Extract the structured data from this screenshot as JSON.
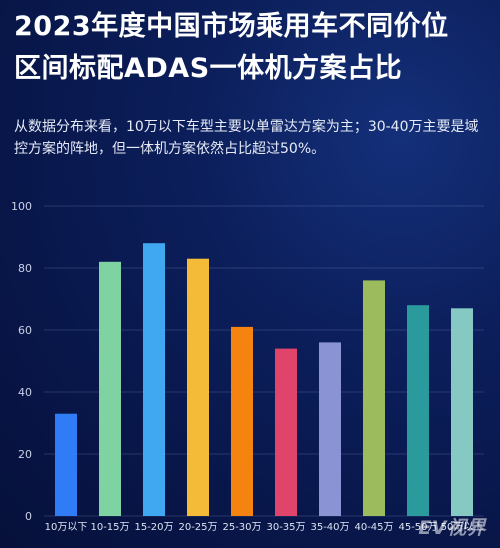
{
  "header": {
    "title_line1": "2023年度中国市场乘用车不同价位",
    "title_line2": "区间标配ADAS一体机方案占比",
    "subtitle": "从数据分布来看，10万以下车型主要以单雷达方案为主；30-40万主要是域控方案的阵地，但一体机方案依然占比超过50%。"
  },
  "watermark": "EV视界",
  "chart_data": {
    "type": "bar",
    "categories": [
      "10万以下",
      "10-15万",
      "15-20万",
      "20-25万",
      "25-30万",
      "30-35万",
      "35-40万",
      "40-45万",
      "45-50万",
      "50万以上"
    ],
    "values": [
      33,
      82,
      88,
      83,
      61,
      54,
      56,
      76,
      68,
      67
    ],
    "colors": [
      "#2f7cf6",
      "#7fd3a3",
      "#3fa8f0",
      "#f4bb38",
      "#f4840f",
      "#e0446a",
      "#8a94d4",
      "#9bbb5c",
      "#2a9a9c",
      "#86c8c2"
    ],
    "yticks": [
      0,
      20,
      40,
      60,
      80,
      100
    ],
    "ylim": [
      0,
      100
    ],
    "grid": true
  }
}
